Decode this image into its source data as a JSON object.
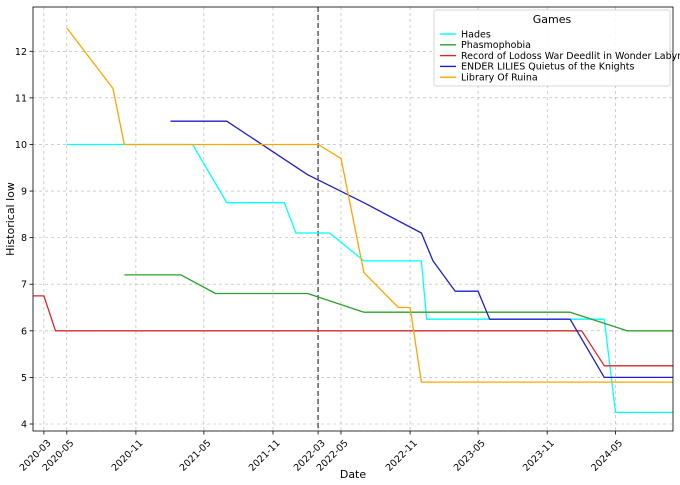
{
  "chart_data": {
    "type": "line",
    "title": "",
    "xlabel": "Date",
    "ylabel": "Historical low",
    "ylim": [
      3.85,
      12.95
    ],
    "xlim": [
      "2020-02-01",
      "2024-10-01"
    ],
    "yticks": [
      4,
      5,
      6,
      7,
      8,
      9,
      10,
      11,
      12
    ],
    "xticks": [
      "2020-03",
      "2020-05",
      "2020-11",
      "2021-05",
      "2021-11",
      "2022-03",
      "2022-05",
      "2022-11",
      "2023-05",
      "2023-11",
      "2024-05"
    ],
    "grid": true,
    "vline": "2022-03-01",
    "legend": {
      "title": "Games",
      "position": "top-right"
    },
    "series": [
      {
        "name": "Hades",
        "color": "#00FFFF",
        "points": [
          [
            "2020-05-01",
            10
          ],
          [
            "2021-04-01",
            10
          ],
          [
            "2021-07-01",
            8.75
          ],
          [
            "2021-12-01",
            8.75
          ],
          [
            "2022-01-01",
            8.1
          ],
          [
            "2022-04-01",
            8.1
          ],
          [
            "2022-07-01",
            7.5
          ],
          [
            "2022-12-01",
            7.5
          ],
          [
            "2022-12-15",
            6.25
          ],
          [
            "2024-04-01",
            6.25
          ],
          [
            "2024-05-01",
            4.25
          ],
          [
            "2024-10-01",
            4.25
          ]
        ]
      },
      {
        "name": "Phasmophobia",
        "color": "#2CA02C",
        "points": [
          [
            "2020-10-01",
            7.2
          ],
          [
            "2021-03-01",
            7.2
          ],
          [
            "2021-06-01",
            6.8
          ],
          [
            "2022-02-01",
            6.8
          ],
          [
            "2022-07-01",
            6.4
          ],
          [
            "2024-01-01",
            6.4
          ],
          [
            "2024-06-01",
            6
          ],
          [
            "2024-10-01",
            6
          ]
        ]
      },
      {
        "name": "Record of Lodoss War Deedlit in Wonder Labyrinth",
        "color": "#D62728",
        "points": [
          [
            "2020-02-01",
            6.75
          ],
          [
            "2020-03-01",
            6.75
          ],
          [
            "2020-04-01",
            6
          ],
          [
            "2024-02-01",
            6
          ],
          [
            "2024-04-01",
            5.25
          ],
          [
            "2024-10-01",
            5.25
          ]
        ]
      },
      {
        "name": "ENDER LILIES Quietus of the Knights",
        "color": "#1F1FC8",
        "points": [
          [
            "2021-02-01",
            10.5
          ],
          [
            "2021-07-01",
            10.5
          ],
          [
            "2022-02-01",
            9.35
          ],
          [
            "2022-07-01",
            8.75
          ],
          [
            "2022-12-01",
            8.1
          ],
          [
            "2023-01-01",
            7.5
          ],
          [
            "2023-03-01",
            6.85
          ],
          [
            "2023-05-01",
            6.85
          ],
          [
            "2023-06-01",
            6.25
          ],
          [
            "2024-01-01",
            6.25
          ],
          [
            "2024-04-01",
            5
          ],
          [
            "2024-10-01",
            5
          ]
        ]
      },
      {
        "name": "Library Of Ruina",
        "color": "#FFA500",
        "points": [
          [
            "2020-05-01",
            12.5
          ],
          [
            "2020-09-01",
            11.2
          ],
          [
            "2020-10-01",
            10
          ],
          [
            "2022-03-01",
            10
          ],
          [
            "2022-05-01",
            9.7
          ],
          [
            "2022-07-01",
            7.25
          ],
          [
            "2022-10-01",
            6.5
          ],
          [
            "2022-11-01",
            6.5
          ],
          [
            "2022-12-01",
            4.9
          ],
          [
            "2024-10-01",
            4.9
          ]
        ]
      }
    ]
  }
}
